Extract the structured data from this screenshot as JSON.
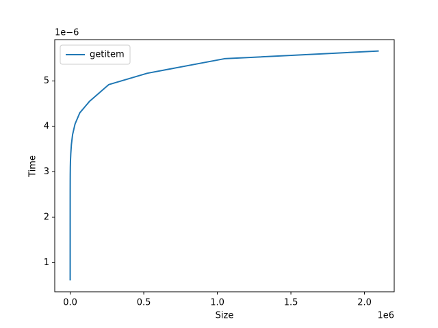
{
  "chart_data": {
    "type": "line",
    "x_label": "Size",
    "y_label": "Time",
    "x_offset_label": "1e6",
    "y_offset_label": "1e−6",
    "x": [
      1,
      2,
      4,
      8,
      16,
      32,
      64,
      128,
      256,
      512,
      1024,
      2048,
      4096,
      8192,
      16384,
      32768,
      65536,
      131072,
      262144,
      524288,
      1048576,
      2097152
    ],
    "series": [
      {
        "name": "getitem",
        "color": "#1f77b4",
        "values": [
          6.1e-07,
          9e-07,
          1.2e-06,
          1.5e-06,
          1.8e-06,
          2.1e-06,
          2.35e-06,
          2.6e-06,
          2.8e-06,
          2.95e-06,
          3.1e-06,
          3.25e-06,
          3.4e-06,
          3.6e-06,
          3.82e-06,
          4.05e-06,
          4.3e-06,
          4.55e-06,
          4.92e-06,
          5.17e-06,
          5.49e-06,
          5.66e-06
        ]
      }
    ],
    "xlim": [
      -104857,
      2202009
    ],
    "xticks": [
      {
        "value": 0,
        "label": "0.0"
      },
      {
        "value": 500000,
        "label": "0.5"
      },
      {
        "value": 1000000,
        "label": "1.0"
      },
      {
        "value": 1500000,
        "label": "1.5"
      },
      {
        "value": 2000000,
        "label": "2.0"
      }
    ],
    "ylim": [
      3.6e-07,
      5.91e-06
    ],
    "yticks": [
      {
        "value": 1e-06,
        "label": "1"
      },
      {
        "value": 2e-06,
        "label": "2"
      },
      {
        "value": 3e-06,
        "label": "3"
      },
      {
        "value": 4e-06,
        "label": "4"
      },
      {
        "value": 5e-06,
        "label": "5"
      }
    ],
    "grid": false,
    "legend": "upper left"
  }
}
